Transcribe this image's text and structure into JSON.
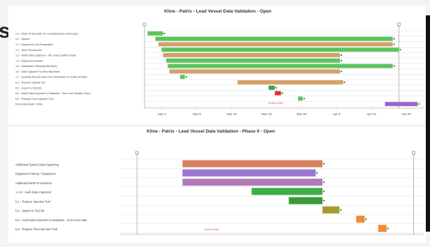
{
  "edge_letter": "s",
  "chart_data": [
    {
      "type": "gantt",
      "title": "Kline - Patrix - Lead Vessel Data Validation - Open",
      "xlabel": "",
      "ylabel": "",
      "x_ticks": [
        "Mar-2",
        "Mar-9",
        "Mar-16",
        "Mar-23",
        "Mar-30",
        "Apr-6",
        "Apr-13",
        "Apr-20"
      ],
      "xlim": [
        0,
        9
      ],
      "milestones": [
        0,
        8.2
      ],
      "today_label": "Status Date",
      "today": 4.0,
      "grid": true,
      "tasks": [
        {
          "label": "1.0 - Audit Of Manuals For Completeness & Accuracy",
          "start": 0.1,
          "end": 0.6,
          "color": "#5cc45c"
        },
        {
          "label": "1.0 - Spares",
          "start": 0.35,
          "end": 8.0,
          "color": "#5cc45c"
        },
        {
          "label": "1.1 - Equipment List Preparation",
          "start": 0.45,
          "end": 8.0,
          "color": "#d4a068"
        },
        {
          "label": "1.2 - Work Procedures",
          "start": 0.55,
          "end": 8.2,
          "color": "#5cc45c"
        },
        {
          "label": "1.3 - Audit Data Captured - OB Level Quality Check",
          "start": 0.6,
          "end": 6.3,
          "color": "#d4a068"
        },
        {
          "label": "1.4 - Equipment Details",
          "start": 0.7,
          "end": 6.3,
          "color": "#5cc45c"
        },
        {
          "label": "1.5 - Maintainer Planning Machines",
          "start": 0.75,
          "end": 8.0,
          "color": "#5cc45c"
        },
        {
          "label": "1.6 - Data Capture For New Machines",
          "start": 0.8,
          "end": 6.3,
          "color": "#d4a068"
        },
        {
          "label": "1.7 - Quantity Should Data From Stocktake & Create All Data",
          "start": 1.15,
          "end": 1.3,
          "color": "#5cc45c"
        },
        {
          "label": "5.1 - Prepare Upload Tool",
          "start": 3.0,
          "end": 6.4,
          "color": "#d4a068"
        },
        {
          "label": "5.2 - Import to Test Db",
          "start": 4.0,
          "end": 4.2,
          "color": "#2ea84a"
        },
        {
          "label": "6.0 - Audit Data Imported in Database - 2nd Level Quality Check",
          "start": 4.2,
          "end": 4.4,
          "color": "#e03030"
        },
        {
          "label": "6.6 - Prepare Final Injection Tool",
          "start": 4.95,
          "end": 5.1,
          "color": "#5cc45c"
        },
        {
          "label": "Final Data Audit - Wide",
          "start": 7.75,
          "end": 8.8,
          "color": "#9966cc"
        }
      ]
    },
    {
      "type": "gantt",
      "title": "Kline - Patrix - Lead Vessel Data Validation - Phase II - Open",
      "xlabel": "",
      "ylabel": "",
      "x_ticks": [],
      "xlim": [
        0,
        9
      ],
      "milestones": [
        0.5,
        8.7
      ],
      "today_label": "Status Date",
      "today": 2.5,
      "grid": true,
      "tasks": [
        {
          "label": "Additional Spares Data Capturing",
          "start": 1.85,
          "end": 6.0,
          "color": "#d98060"
        },
        {
          "label": "Equipment History / Equipment",
          "start": 1.85,
          "end": 5.8,
          "color": "#9a77d0"
        },
        {
          "label": "Additional Work Procedures",
          "start": 1.85,
          "end": 6.0,
          "color": "#b07ab8"
        },
        {
          "label": "1.1-8 - Audit Data Captured",
          "start": 3.9,
          "end": 6.0,
          "color": "#3fae49"
        },
        {
          "label": "5.1 - Prepare Injection Tool",
          "start": 5.0,
          "end": 6.0,
          "color": "#3a9a3a"
        },
        {
          "label": "5.2 - Import to Test Db",
          "start": 6.0,
          "end": 6.5,
          "color": "#a89a2c"
        },
        {
          "label": "6.0 - Audit Data Imported in Database - 2nd Level Audit",
          "start": 7.0,
          "end": 7.25,
          "color": "#f08c30"
        },
        {
          "label": "6.6 - Prepare Final Injection Tool",
          "start": 7.65,
          "end": 7.9,
          "color": "#f08c30"
        }
      ]
    }
  ]
}
